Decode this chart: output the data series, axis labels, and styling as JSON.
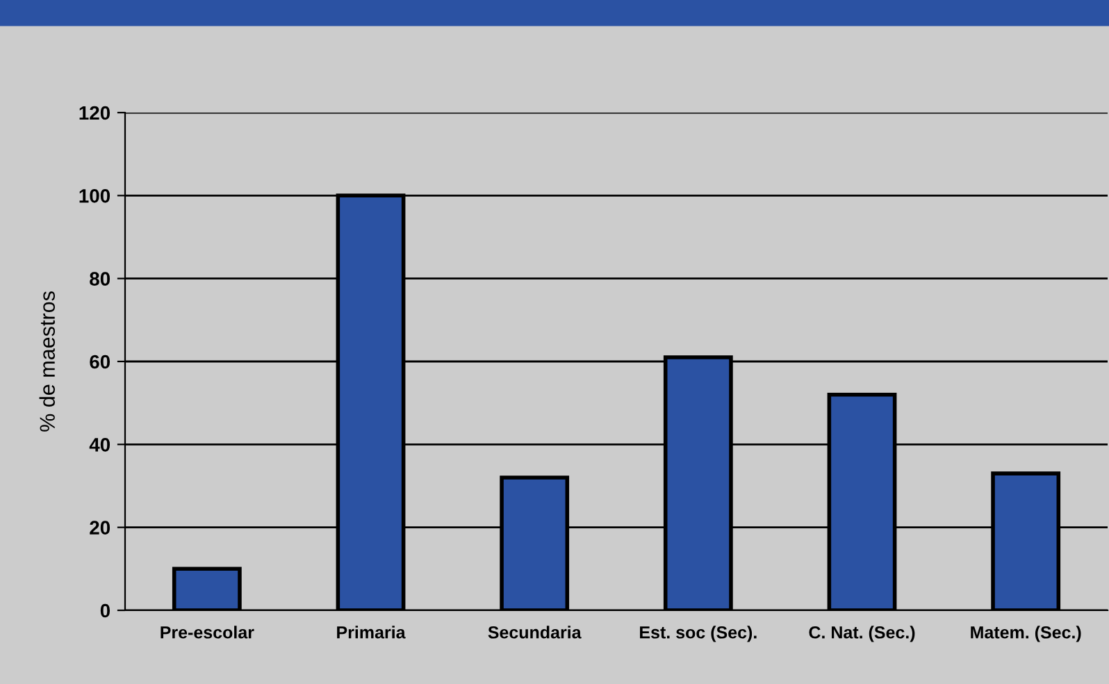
{
  "chart_data": {
    "type": "bar",
    "ylabel": "% de maestros",
    "categories": [
      "Pre-escolar",
      "Primaria",
      "Secundaria",
      "Est. soc (Sec).",
      "C. Nat. (Sec.)",
      "Matem. (Sec.)"
    ],
    "values": [
      10,
      100,
      32,
      61,
      52,
      33
    ],
    "color": "#2b52a3",
    "ylim": [
      0,
      120
    ],
    "yticks": [
      0,
      20,
      40,
      60,
      80,
      100,
      120
    ],
    "grid": "y"
  }
}
